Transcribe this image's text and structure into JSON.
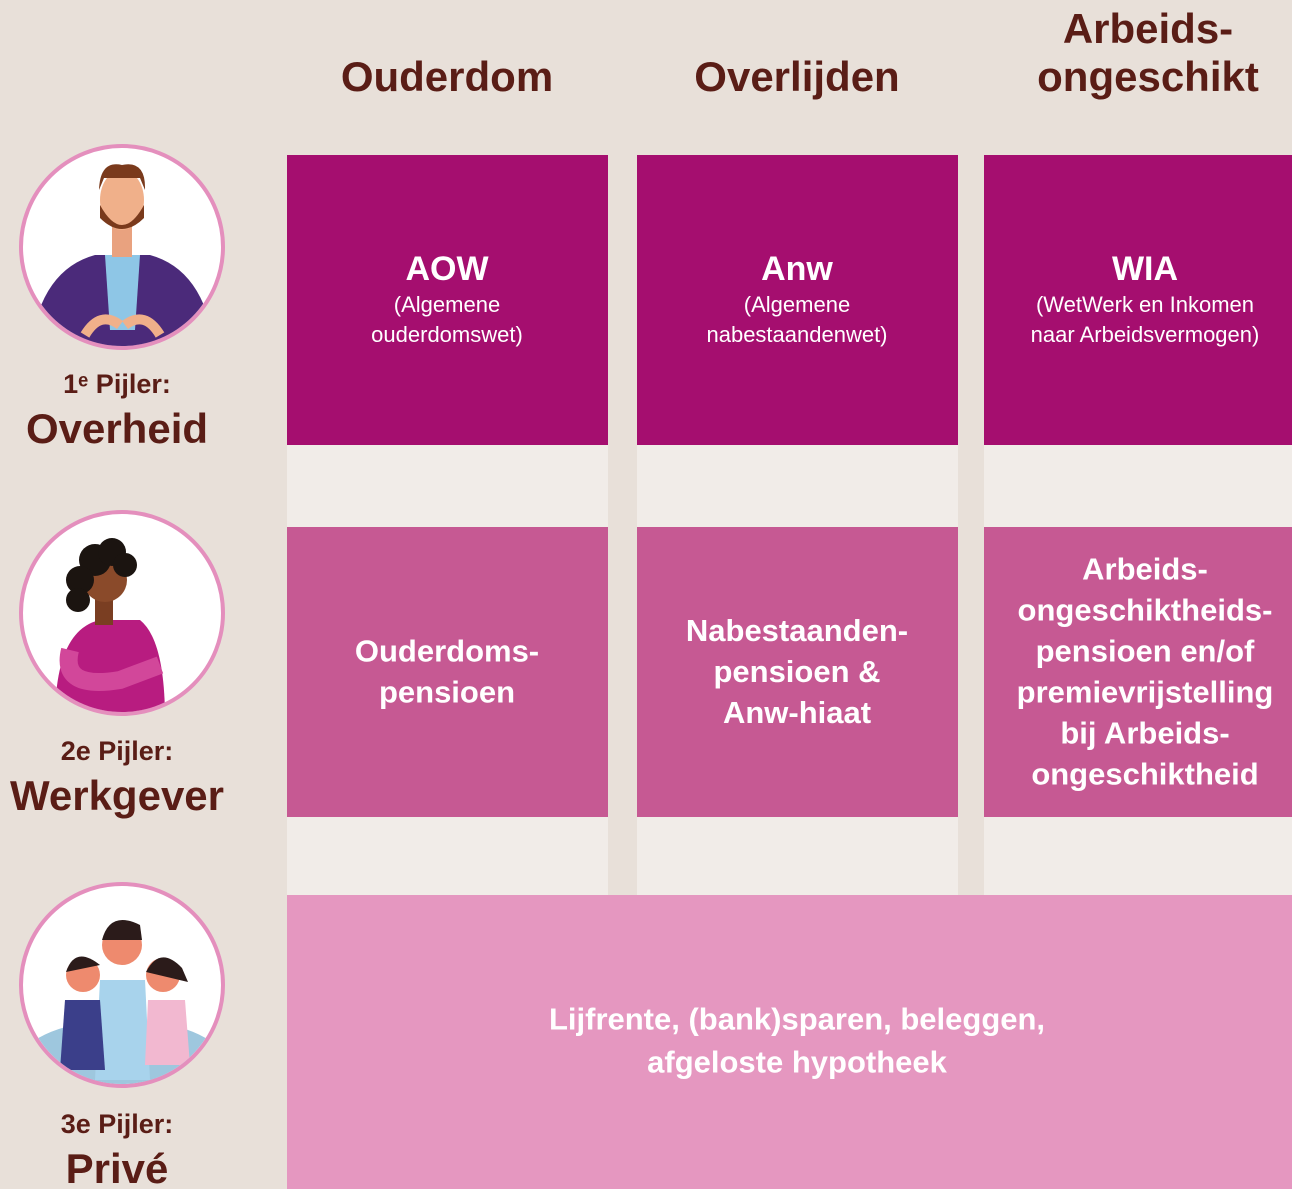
{
  "columns": [
    {
      "lines": [
        "Ouderdom"
      ]
    },
    {
      "lines": [
        "Overlijden"
      ]
    },
    {
      "lines": [
        "Arbeids-",
        "ongeschikt"
      ]
    }
  ],
  "pillars": [
    {
      "label": "1ᵉ Pijler:",
      "name": "Overheid"
    },
    {
      "label": "2e Pijler:",
      "name": "Werkgever"
    },
    {
      "label": "3e Pijler:",
      "name": "Privé"
    }
  ],
  "rows": [
    [
      {
        "title": "AOW",
        "subtitle": [
          "(Algemene",
          "ouderdomswet)"
        ]
      },
      {
        "title": "Anw",
        "subtitle": [
          "(Algemene",
          "nabestaandenwet)"
        ]
      },
      {
        "title": "WIA",
        "subtitle": [
          "(WetWerk en Inkomen",
          "naar Arbeidsvermogen)"
        ]
      }
    ],
    [
      {
        "lines": [
          "Ouderdoms-",
          "pensioen"
        ]
      },
      {
        "lines": [
          "Nabestaanden-",
          "pensioen &",
          "Anw-hiaat"
        ]
      },
      {
        "lines": [
          "Arbeids-",
          "ongeschiktheids-",
          "pensioen en/of",
          "premievrijstelling",
          "bij Arbeids-",
          "ongeschiktheid"
        ]
      }
    ]
  ],
  "private": {
    "lines": [
      "Lijfrente, (bank)sparen, beleggen,",
      "afgeloste hypotheek"
    ]
  }
}
